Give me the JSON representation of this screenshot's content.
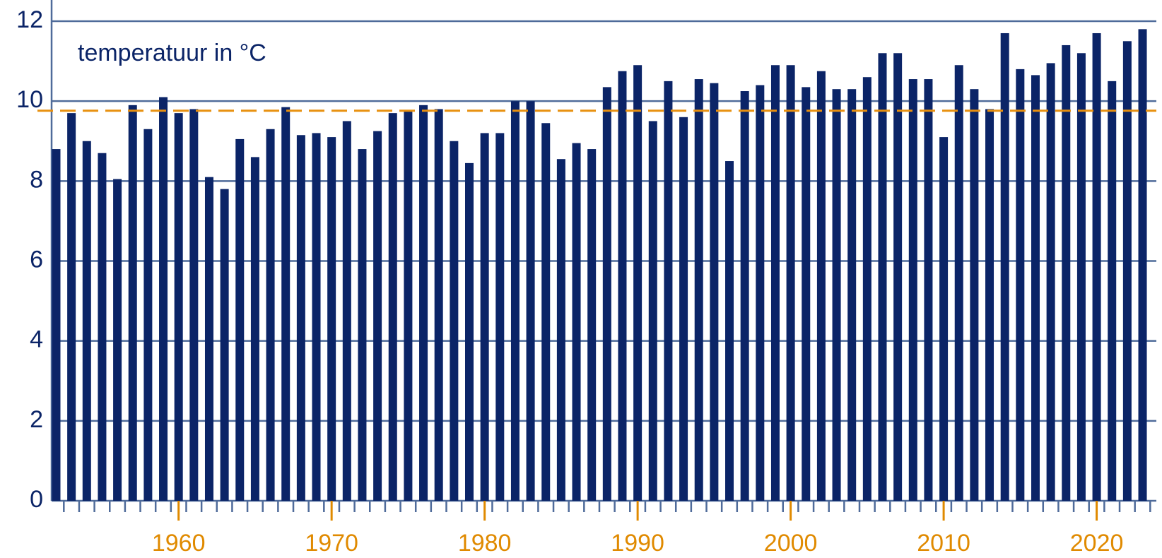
{
  "chart_data": {
    "type": "bar",
    "annotation": "temperatuur in °C",
    "x": [
      1952,
      1953,
      1954,
      1955,
      1956,
      1957,
      1958,
      1959,
      1960,
      1961,
      1962,
      1963,
      1964,
      1965,
      1966,
      1967,
      1968,
      1969,
      1970,
      1971,
      1972,
      1973,
      1974,
      1975,
      1976,
      1977,
      1978,
      1979,
      1980,
      1981,
      1982,
      1983,
      1984,
      1985,
      1986,
      1987,
      1988,
      1989,
      1990,
      1991,
      1992,
      1993,
      1994,
      1995,
      1996,
      1997,
      1998,
      1999,
      2000,
      2001,
      2002,
      2003,
      2004,
      2005,
      2006,
      2007,
      2008,
      2009,
      2010,
      2011,
      2012,
      2013,
      2014,
      2015,
      2016,
      2017,
      2018,
      2019,
      2020,
      2021,
      2022,
      2023
    ],
    "values": [
      8.8,
      9.7,
      9.0,
      8.7,
      8.05,
      9.9,
      9.3,
      10.1,
      9.7,
      9.8,
      8.1,
      7.8,
      9.05,
      8.6,
      9.3,
      9.85,
      9.15,
      9.2,
      9.1,
      9.5,
      8.8,
      9.25,
      9.7,
      9.75,
      9.9,
      9.8,
      9.0,
      8.45,
      9.2,
      9.2,
      10.0,
      10.0,
      9.45,
      8.55,
      8.95,
      8.8,
      10.35,
      10.75,
      10.9,
      9.5,
      10.5,
      9.6,
      10.55,
      10.45,
      8.5,
      10.25,
      10.4,
      10.9,
      10.9,
      10.35,
      10.75,
      10.3,
      10.3,
      10.6,
      11.2,
      11.2,
      10.55,
      10.55,
      9.1,
      10.9,
      10.3,
      9.8,
      11.7,
      10.8,
      10.65,
      10.95,
      11.4,
      11.2,
      11.7,
      10.5,
      11.5,
      11.8
    ],
    "color": "#0b2467",
    "reference_line": {
      "value": 9.76,
      "color": "#e8900f"
    },
    "xlim": [
      1951.7,
      2023.9
    ],
    "xticks": [
      1960,
      1970,
      1980,
      1990,
      2000,
      2010,
      2020
    ],
    "xtick_color": "#e08a00",
    "ylim": [
      0,
      12
    ],
    "yticks": [
      0,
      2,
      4,
      6,
      8,
      10,
      12
    ],
    "grid": true,
    "grid_color": "#4f6b9a"
  }
}
